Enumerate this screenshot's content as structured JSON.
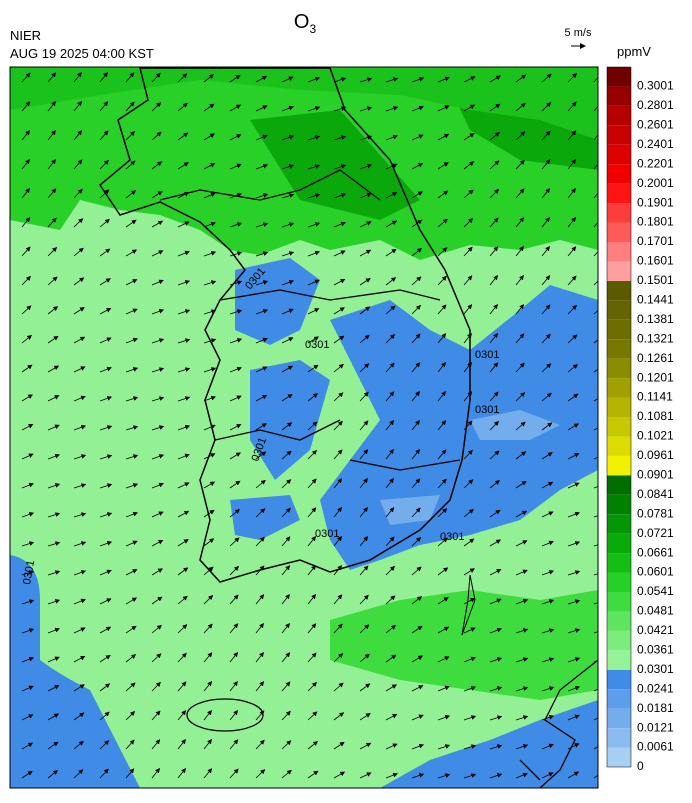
{
  "header": {
    "title": "O",
    "title_subscript": "3",
    "source": "NIER",
    "datetime": "AUG 19 2025 04:00 KST",
    "wind_scale": "5 m/s"
  },
  "colorbar": {
    "unit": "ppmV",
    "levels": [
      0,
      0.0061,
      0.0121,
      0.0181,
      0.0241,
      0.0301,
      0.0361,
      0.0421,
      0.0481,
      0.0541,
      0.0601,
      0.0661,
      0.0721,
      0.0781,
      0.0841,
      0.0901,
      0.0961,
      0.1021,
      0.1081,
      0.1141,
      0.1201,
      0.1261,
      0.1321,
      0.1381,
      0.1441,
      0.1501,
      0.1601,
      0.1701,
      0.1801,
      0.1901,
      0.2001,
      0.2201,
      0.2401,
      0.2601,
      0.2801,
      0.3001
    ],
    "colors": [
      "#a6cff2",
      "#8cbcef",
      "#73adec",
      "#5c9eea",
      "#3f8be6",
      "#96f296",
      "#7ced7c",
      "#5fe45f",
      "#3fdc3f",
      "#26d026",
      "#14be14",
      "#0aaa0a",
      "#049604",
      "#008200",
      "#006e00",
      "#f0f000",
      "#dcdc00",
      "#c8c800",
      "#b4b400",
      "#a0a000",
      "#8c8c00",
      "#787800",
      "#6e6e00",
      "#646400",
      "#5a5a00",
      "#ff9e9e",
      "#ff7f7f",
      "#ff5a5a",
      "#ff3c3c",
      "#ff1414",
      "#f00000",
      "#dc0000",
      "#c80000",
      "#b40000",
      "#960000",
      "#6e0000"
    ]
  },
  "contour_labels": [
    "0301",
    "0301",
    "0301",
    "0301",
    "0301",
    "0301",
    "0301",
    "0301"
  ]
}
